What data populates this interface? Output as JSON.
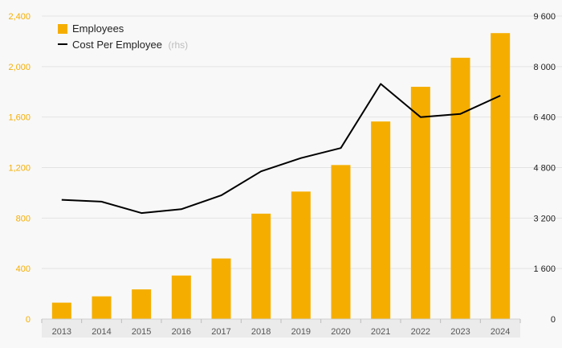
{
  "chart_data": {
    "type": "bar",
    "categories": [
      "2013",
      "2014",
      "2015",
      "2016",
      "2017",
      "2018",
      "2019",
      "2020",
      "2021",
      "2022",
      "2023",
      "2024"
    ],
    "series": [
      {
        "name": "Employees",
        "type": "bar",
        "axis": "left",
        "color": "#f5ae00",
        "values": [
          130,
          180,
          235,
          345,
          480,
          835,
          1010,
          1220,
          1565,
          1840,
          2070,
          2265
        ]
      },
      {
        "name": "Cost Per Employee",
        "type": "line",
        "axis": "right",
        "color": "#000000",
        "values": [
          3780,
          3720,
          3360,
          3480,
          3920,
          4680,
          5100,
          5420,
          7450,
          6400,
          6500,
          7080
        ]
      }
    ],
    "legend": {
      "position": "top-left",
      "items": [
        {
          "label": "Employees",
          "note": ""
        },
        {
          "label": "Cost Per Employee",
          "note": "(rhs)"
        }
      ]
    },
    "y_left": {
      "lim": [
        0,
        2400
      ],
      "ticks": [
        0,
        400,
        800,
        1200,
        1600,
        2000,
        2400
      ],
      "tick_labels": [
        "0",
        "400",
        "800",
        "1,200",
        "1,600",
        "2,000",
        "2,400"
      ],
      "color": "#f5ae00"
    },
    "y_right": {
      "lim": [
        0,
        9600
      ],
      "ticks": [
        0,
        1600,
        3200,
        4800,
        6400,
        8000,
        9600
      ],
      "tick_labels": [
        "0",
        "1 600",
        "3 200",
        "4 800",
        "6 400",
        "8 000",
        "9 600"
      ],
      "color": "#222222"
    },
    "grid": true,
    "title": "",
    "xlabel": "",
    "ylabel": ""
  }
}
